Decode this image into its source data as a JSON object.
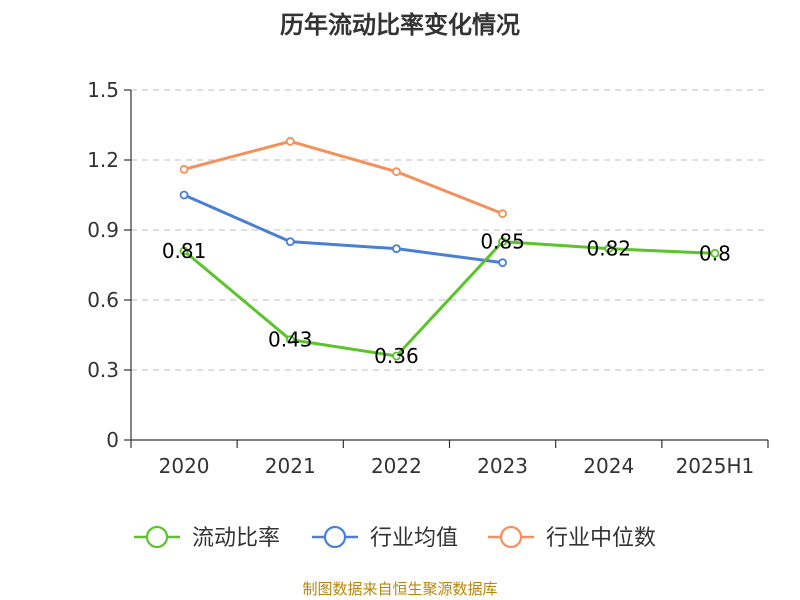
{
  "chart_data": {
    "type": "line",
    "title": "历年流动比率变化情况",
    "categories": [
      "2020",
      "2021",
      "2022",
      "2023",
      "2024",
      "2025H1"
    ],
    "ylim": [
      0,
      1.5
    ],
    "yticks": [
      "0",
      "0.3",
      "0.6",
      "0.9",
      "1.2",
      "1.5"
    ],
    "grid": true,
    "legend_position": "bottom",
    "series": [
      {
        "name": "流动比率",
        "color": "#5ac42a",
        "values": [
          0.81,
          0.43,
          0.36,
          0.85,
          0.82,
          0.8
        ],
        "labels": [
          "0.81",
          "0.43",
          "0.36",
          "0.85",
          "0.82",
          "0.8"
        ]
      },
      {
        "name": "行业均值",
        "color": "#4a7fd6",
        "values": [
          1.05,
          0.85,
          0.82,
          0.76,
          null,
          null
        ]
      },
      {
        "name": "行业中位数",
        "color": "#f4905a",
        "values": [
          1.16,
          1.28,
          1.15,
          0.97,
          null,
          null
        ]
      }
    ],
    "source": "制图数据来自恒生聚源数据库"
  }
}
